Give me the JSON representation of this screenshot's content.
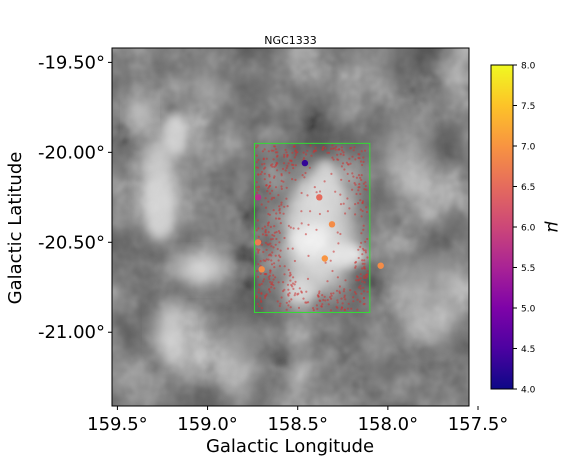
{
  "chart_data": {
    "type": "scatter",
    "title": "NGC1333",
    "xlabel": "Galactic Longitude",
    "ylabel": "Galactic Latitude",
    "xlim": [
      159.53,
      157.55
    ],
    "ylim": [
      -21.41,
      -19.42
    ],
    "x_ticks": [
      {
        "value": 159.5,
        "label": "159.5°"
      },
      {
        "value": 159.0,
        "label": "159.0°"
      },
      {
        "value": 158.5,
        "label": "158.5°"
      },
      {
        "value": 158.0,
        "label": "158.0°"
      },
      {
        "value": 157.5,
        "label": "157.5°"
      }
    ],
    "y_ticks": [
      {
        "value": -19.5,
        "label": "-19.50°"
      },
      {
        "value": -20.0,
        "label": "-20.00°"
      },
      {
        "value": -20.5,
        "label": "-20.50°"
      },
      {
        "value": -21.0,
        "label": "-21.00°"
      }
    ],
    "background": "grayscale dust map",
    "box": {
      "l_min": 158.1,
      "l_max": 158.74,
      "b_min": -20.89,
      "b_max": -19.95,
      "color": "#33dd33"
    },
    "region_points_color": "#cc3333",
    "series": [
      {
        "values_key": "mu",
        "points": [
          {
            "l": 158.46,
            "b": -20.06,
            "mu": 4.3
          },
          {
            "l": 158.72,
            "b": -20.25,
            "mu": 5.7
          },
          {
            "l": 158.38,
            "b": -20.25,
            "mu": 6.5
          },
          {
            "l": 158.31,
            "b": -20.4,
            "mu": 6.9
          },
          {
            "l": 158.72,
            "b": -20.5,
            "mu": 6.7
          },
          {
            "l": 158.35,
            "b": -20.59,
            "mu": 7.0
          },
          {
            "l": 158.7,
            "b": -20.65,
            "mu": 6.9
          },
          {
            "l": 158.04,
            "b": -20.63,
            "mu": 6.9
          }
        ]
      }
    ],
    "colorbar": {
      "label": "μ",
      "min": 4.0,
      "max": 8.0,
      "colormap": "plasma",
      "ticks": [
        "4.0",
        "4.5",
        "5.0",
        "5.5",
        "6.0",
        "6.5",
        "7.0",
        "7.5",
        "8.0"
      ]
    },
    "grid": false
  }
}
